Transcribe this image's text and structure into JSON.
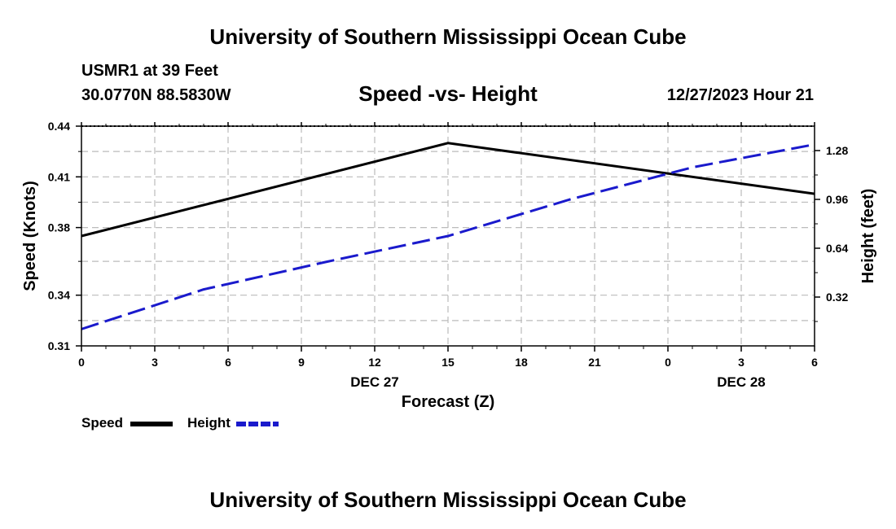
{
  "header": {
    "title": "University of Southern Mississippi Ocean Cube",
    "footer_title": "University of Southern Mississippi Ocean Cube",
    "station": "USMR1 at 39 Feet",
    "coords": "30.0770N  88.5830W",
    "datetime": "12/27/2023 Hour 21"
  },
  "legend": {
    "speed_label": "Speed",
    "height_label": "Height"
  },
  "colors": {
    "speed": "#000000",
    "height": "#1a1acc",
    "grid": "#bbbbbb"
  },
  "chart_data": {
    "type": "line",
    "title": "Speed -vs- Height",
    "xlabel": "Forecast (Z)",
    "ylabel_left": "Speed (Knots)",
    "ylabel_right": "Height (feet)",
    "x": [
      0,
      15,
      30
    ],
    "x_tick_labels": [
      "0",
      "3",
      "6",
      "9",
      "12",
      "15",
      "18",
      "21",
      "0",
      "3",
      "6"
    ],
    "x_day_labels": [
      {
        "label": "DEC 27",
        "at_hour": 12
      },
      {
        "label": "DEC 28",
        "at_hour": 27
      }
    ],
    "xlim": [
      0,
      30
    ],
    "ylim_left": [
      0.31,
      0.44
    ],
    "left_ticks": [
      0.31,
      0.34,
      0.38,
      0.41,
      0.44
    ],
    "left_tick_labels": [
      "0.31",
      "0.34",
      "0.38",
      "0.41",
      "0.44"
    ],
    "ylim_right": [
      0.0,
      1.44
    ],
    "right_ticks": [
      0.32,
      0.64,
      0.96,
      1.28
    ],
    "right_tick_labels": [
      "0.32",
      "0.64",
      "0.96",
      "1.28"
    ],
    "grid": true,
    "series": [
      {
        "name": "Speed",
        "axis": "left",
        "style": "solid",
        "x": [
          0,
          15,
          30
        ],
        "values": [
          0.375,
          0.43,
          0.4
        ]
      },
      {
        "name": "Height",
        "axis": "right",
        "style": "dashed",
        "x": [
          0,
          5,
          10,
          15,
          20,
          25,
          30
        ],
        "values": [
          0.11,
          0.37,
          0.55,
          0.72,
          0.96,
          1.17,
          1.32
        ]
      }
    ]
  }
}
